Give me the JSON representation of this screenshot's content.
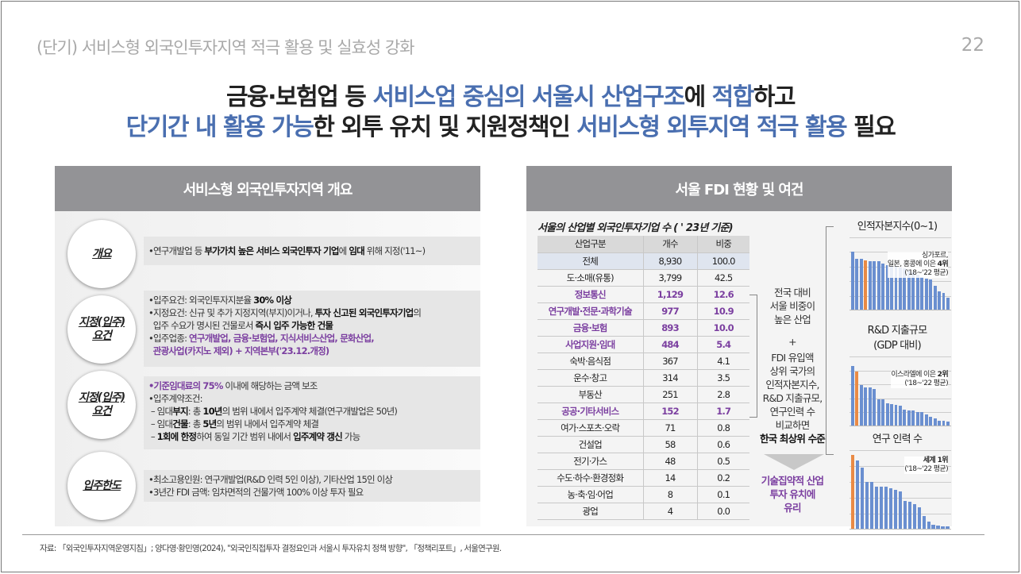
{
  "header": {
    "section_title": "(단기) 서비스형 외국인투자지역 적극 활용 및 실효성 강화",
    "page_number": "22"
  },
  "headline": {
    "line1": [
      {
        "t": "금융·보험업 등 ",
        "hl": false
      },
      {
        "t": "서비스업 중심의 서울시 산업구조",
        "hl": true
      },
      {
        "t": "에 ",
        "hl": false
      },
      {
        "t": "적합",
        "hl": true
      },
      {
        "t": "하고",
        "hl": false
      }
    ],
    "line2": [
      {
        "t": "단기간 내 활용 가능",
        "hl": true
      },
      {
        "t": "한 외투 유치 및 지원정책인 ",
        "hl": false
      },
      {
        "t": "서비스형 외투지역 적극 활용",
        "hl": true
      },
      {
        "t": " 필요",
        "hl": false
      }
    ],
    "accent_color": "#4a6fb0"
  },
  "left_panel": {
    "title": "서비스형 외국인투자지역 개요",
    "rows": [
      {
        "label": "개요",
        "lines": [
          "•연구개발업 등 <b>부가가치 높은 서비스 외국인투자 기업</b>에 <b>임대</b> 위해 지정('11~)"
        ]
      },
      {
        "label": "지정(입주)<br>요건",
        "lines": [
          "•입주요건: 외국인투자지분율 <b>30% 이상</b>",
          "•지정요건: 신규 및 추가 지정지역(부지)이거나, <b>투자 신고된 외국인투자기업</b>의",
          "&nbsp;&nbsp;입주 수요가 명시된 건물로서 <b>즉시 입주 가능한 건물</b>",
          "•입주업종: <span class='pur'>연구개발업, 금융·보험업, 지식서비스산업, 문화산업,</span>",
          "&nbsp;&nbsp;<span class='pur'>관광사업(카지노 제외) + 지역본부('23.12.개정)</span>"
        ]
      },
      {
        "label": "지정(입주)<br>요건",
        "lines": [
          "<span class='pur'>•기준임대료의 75%</span> 이내에 해당하는 금액 보조",
          "•입주계약조건:",
          "&nbsp;– 임대<b>부지</b>: 총 <b>10년</b>의 범위 내에서 입주계약 체결(연구개발업은 50년)",
          "&nbsp;– 임대<b>건물</b>: 총 <b>5년</b>의 범위 내에서 입주계약 체결",
          "&nbsp;– <b>1회에 한정</b>하여 동일 기간 범위 내에서 <b>입주계약 갱신</b> 가능"
        ]
      },
      {
        "label": "입주한도",
        "lines": [
          "•최소고용인원: 연구개발업(R&amp;D 인력 5인 이상), 기타산업 15인 이상",
          "•3년간 FDI 금액: 임차면적의 건물가액 100% 이상 투자 필요"
        ]
      }
    ]
  },
  "right_panel": {
    "title": "서울 FDI 현황 및 여건",
    "table": {
      "title": "서울의 산업별 외국인투자기업 수 ( ' 23년 기준)",
      "headers": [
        "산업구분",
        "개수",
        "비중"
      ],
      "rows": [
        {
          "name": "전체",
          "count": "8,930",
          "share": "100.0",
          "type": "total"
        },
        {
          "name": "도·소매(유통)",
          "count": "3,799",
          "share": "42.5",
          "type": ""
        },
        {
          "name": "정보통신",
          "count": "1,129",
          "share": "12.6",
          "type": "pur"
        },
        {
          "name": "연구개발·전문·과학기술",
          "count": "977",
          "share": "10.9",
          "type": "pur"
        },
        {
          "name": "금융·보험",
          "count": "893",
          "share": "10.0",
          "type": "pur"
        },
        {
          "name": "사업지원·임대",
          "count": "484",
          "share": "5.4",
          "type": "pur"
        },
        {
          "name": "숙박·음식점",
          "count": "367",
          "share": "4.1",
          "type": ""
        },
        {
          "name": "운수·창고",
          "count": "314",
          "share": "3.5",
          "type": ""
        },
        {
          "name": "부동산",
          "count": "251",
          "share": "2.8",
          "type": ""
        },
        {
          "name": "공공·기타서비스",
          "count": "152",
          "share": "1.7",
          "type": "pur"
        },
        {
          "name": "여가·스포츠·오락",
          "count": "71",
          "share": "0.8",
          "type": ""
        },
        {
          "name": "건설업",
          "count": "58",
          "share": "0.6",
          "type": ""
        },
        {
          "name": "전기·가스",
          "count": "48",
          "share": "0.5",
          "type": ""
        },
        {
          "name": "수도·하수·환경정화",
          "count": "14",
          "share": "0.2",
          "type": ""
        },
        {
          "name": "농·축·임·어업",
          "count": "8",
          "share": "0.1",
          "type": ""
        },
        {
          "name": "광업",
          "count": "4",
          "share": "0.0",
          "type": ""
        }
      ]
    },
    "middle": {
      "text1": [
        "전국 대비",
        "서울 비중이",
        "높은 산업"
      ],
      "plus": "+",
      "text2": [
        "FDI 유입액",
        "상위 국가의",
        "인적자본지수,",
        "R&D 지출규모,",
        "연구인력 수",
        "비교하면"
      ],
      "text2_bold": "한국 최상위 수준",
      "result": [
        "기술집약적 산업",
        "투자 유치에",
        "유리"
      ],
      "result_color": "#7b3fa0"
    },
    "mini_charts": [
      {
        "title": "인적자본지수(0~1)",
        "note": [
          "싱가포르,",
          "일본, 홍콩에 이은 <b>4위</b>",
          "('18~'22 평균)"
        ],
        "ylim": [
          0.4,
          1.0
        ],
        "values": [
          0.88,
          0.82,
          0.82,
          0.81,
          0.8,
          0.8,
          0.8,
          0.78,
          0.77,
          0.76,
          0.76,
          0.75,
          0.74,
          0.72,
          0.71,
          0.69,
          0.67,
          0.66,
          0.65,
          0.6,
          0.55,
          0.54,
          0.5
        ],
        "highlight": 3
      },
      {
        "title": "R&D 지출규모<br>(GDP 대비)",
        "note": [
          "이스라엘에 이은 <b>2위</b>",
          "('18~'22 평균)"
        ],
        "ylim": [
          0,
          6
        ],
        "values": [
          5.2,
          4.7,
          3.5,
          3.3,
          3.3,
          3.2,
          2.3,
          2.3,
          1.9,
          1.85,
          1.8,
          1.7,
          1.35,
          1.3,
          1.3,
          1.2,
          1.15,
          1.0,
          0.75,
          0.6,
          0.4,
          0.4,
          0.35
        ],
        "highlight": 1
      },
      {
        "title": "연구 인력 수",
        "note": [
          "<b>세계 1위</b>",
          "('18~'22 평균)"
        ],
        "ylim": [
          0,
          9000
        ],
        "values": [
          8500,
          7800,
          7000,
          5400,
          5400,
          4800,
          4800,
          4800,
          4600,
          4500,
          4300,
          3200,
          3100,
          2800,
          2500,
          1500,
          800,
          500,
          350,
          300,
          300
        ],
        "highlight": 0
      }
    ]
  },
  "source": "자료: 「외국인투자지역운영지침」; 양다영·황민영(2024), \"외국인직접투자 결정요인과 서울시 투자유치 정책 방향\", 「정책리포트」, 서울연구원."
}
